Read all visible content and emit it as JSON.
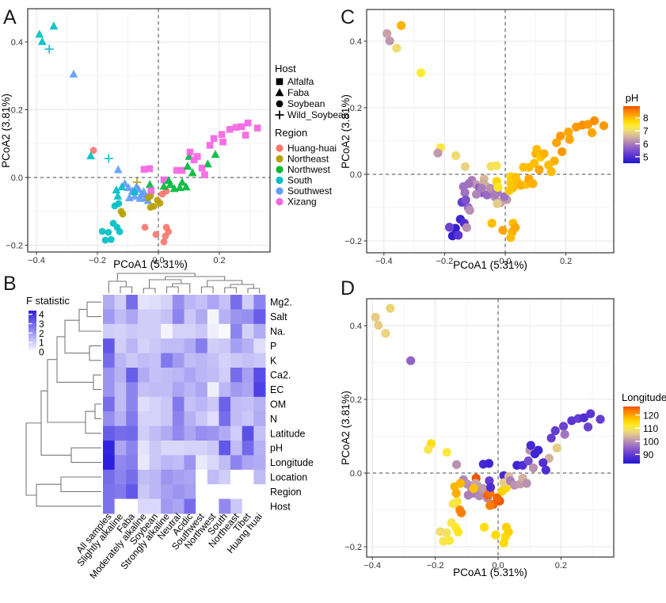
{
  "panels": {
    "A": {
      "label": "A"
    },
    "B": {
      "label": "B"
    },
    "C": {
      "label": "C"
    },
    "D": {
      "label": "D"
    }
  },
  "palette": {
    "regions": {
      "Huang-huai": "#F8766D",
      "Northeast": "#B79F00",
      "Northwest": "#00BA38",
      "South": "#00BFC4",
      "Southwest": "#619CFF",
      "Xizang": "#F564E3"
    },
    "gradient_stops": [
      [
        0.0,
        "#2016d2"
      ],
      [
        0.1,
        "#4b2ad2"
      ],
      [
        0.2,
        "#7347cf"
      ],
      [
        0.3,
        "#9a6cc4"
      ],
      [
        0.4,
        "#bd95b0"
      ],
      [
        0.5,
        "#dec293"
      ],
      [
        0.58,
        "#f2e06b"
      ],
      [
        0.66,
        "#fdea33"
      ],
      [
        0.74,
        "#ffd900"
      ],
      [
        0.84,
        "#ffa600"
      ],
      [
        0.93,
        "#fb7a00"
      ],
      [
        1.0,
        "#ef4e00"
      ]
    ],
    "heatmap_max": "#2d1fe0",
    "heatmap_min": "#ffffff",
    "dendrogram": "#7a7a7a"
  },
  "chart_data": [
    {
      "id": "A",
      "type": "scatter",
      "xlabel": "PCoA1 (5.31%)",
      "ylabel": "PCoA2 (3.81%)",
      "x_tick_values": [
        -0.4,
        -0.2,
        0.0,
        0.2
      ],
      "x_tick_labels": [
        "−0.4",
        "−0.2",
        "0.0",
        "0.2"
      ],
      "y_tick_values": [
        -0.2,
        0.0,
        0.2,
        0.4
      ],
      "y_tick_labels": [
        "−0.2",
        "0.0",
        "0.2",
        "0.4"
      ],
      "xlim": [
        -0.43,
        0.37
      ],
      "ylim": [
        -0.22,
        0.5
      ],
      "shape_legend": {
        "title": "Host",
        "items": [
          "Alfalfa",
          "Faba",
          "Soybean",
          "Wild_Soybean"
        ],
        "shapes": [
          "square",
          "triangle",
          "circle",
          "plus"
        ]
      },
      "color_legend": {
        "title": "Region",
        "items": [
          "Huang-huai",
          "Northeast",
          "Northwest",
          "South",
          "Southwest",
          "Xizang"
        ]
      },
      "hosts": [
        "Alfalfa",
        "Faba",
        "Soybean",
        "Wild_Soybean"
      ],
      "regions": [
        "Huang-huai",
        "Northeast",
        "Northwest",
        "South",
        "Southwest",
        "Xizang"
      ],
      "point_fields": [
        "x",
        "y",
        "host_index",
        "region_index",
        "pH",
        "longitude"
      ],
      "points": [
        [
          -0.39,
          0.423,
          1,
          3,
          6.4,
          106
        ],
        [
          -0.381,
          0.401,
          1,
          3,
          6.3,
          106
        ],
        [
          -0.343,
          0.447,
          1,
          3,
          8.1,
          107
        ],
        [
          -0.358,
          0.379,
          3,
          3,
          7.0,
          107
        ],
        [
          -0.278,
          0.305,
          1,
          4,
          7.4,
          95
        ],
        [
          -0.213,
          0.08,
          2,
          0,
          7.3,
          114
        ],
        [
          -0.222,
          0.064,
          1,
          3,
          6.3,
          110
        ],
        [
          -0.163,
          0.056,
          3,
          3,
          7.0,
          111
        ],
        [
          -0.132,
          0.023,
          1,
          4,
          6.9,
          100
        ],
        [
          -0.047,
          0.024,
          0,
          5,
          7.1,
          87
        ],
        [
          -0.029,
          0.026,
          0,
          5,
          7.2,
          86
        ],
        [
          0.018,
          -0.007,
          0,
          5,
          7.8,
          87
        ],
        [
          0.06,
          0.021,
          0,
          5,
          8.0,
          86
        ],
        [
          0.078,
          0.021,
          0,
          5,
          8.0,
          88
        ],
        [
          -0.07,
          -0.014,
          3,
          1,
          6.6,
          126
        ],
        [
          -0.11,
          -0.018,
          1,
          4,
          6.0,
          99
        ],
        [
          -0.098,
          -0.03,
          1,
          4,
          6.3,
          100
        ],
        [
          -0.085,
          -0.04,
          1,
          4,
          5.6,
          99
        ],
        [
          -0.078,
          -0.055,
          1,
          4,
          5.5,
          98
        ],
        [
          -0.065,
          -0.035,
          1,
          4,
          6.4,
          101
        ],
        [
          -0.055,
          -0.05,
          1,
          4,
          6.9,
          100
        ],
        [
          -0.042,
          -0.06,
          1,
          4,
          7.0,
          103
        ],
        [
          -0.034,
          -0.068,
          1,
          4,
          6.2,
          99
        ],
        [
          -0.095,
          -0.06,
          1,
          4,
          6.1,
          98
        ],
        [
          -0.072,
          -0.028,
          1,
          4,
          6.5,
          102
        ],
        [
          -0.06,
          -0.062,
          1,
          4,
          5.8,
          99
        ],
        [
          -0.048,
          -0.042,
          1,
          4,
          6.2,
          101
        ],
        [
          -0.12,
          -0.028,
          1,
          3,
          5.9,
          118
        ],
        [
          -0.138,
          -0.037,
          1,
          3,
          5.9,
          118
        ],
        [
          -0.133,
          -0.055,
          1,
          3,
          5.9,
          119
        ],
        [
          -0.078,
          -0.042,
          1,
          3,
          6.0,
          117
        ],
        [
          -0.033,
          -0.06,
          2,
          1,
          6.0,
          125
        ],
        [
          -0.026,
          -0.054,
          2,
          1,
          6.0,
          124
        ],
        [
          -0.015,
          -0.085,
          2,
          1,
          6.4,
          125
        ],
        [
          -0.026,
          -0.088,
          2,
          1,
          6.8,
          123
        ],
        [
          0.005,
          -0.076,
          2,
          1,
          6.3,
          126
        ],
        [
          -0.003,
          -0.067,
          2,
          1,
          5.9,
          125
        ],
        [
          -0.122,
          -0.1,
          2,
          1,
          5.8,
          122
        ],
        [
          -0.117,
          -0.108,
          2,
          1,
          6.2,
          123
        ],
        [
          -0.143,
          -0.084,
          2,
          3,
          5.2,
          110
        ],
        [
          -0.13,
          -0.077,
          2,
          3,
          5.5,
          111
        ],
        [
          -0.148,
          -0.135,
          2,
          3,
          4.8,
          110
        ],
        [
          -0.135,
          -0.147,
          2,
          3,
          5.0,
          112
        ],
        [
          -0.164,
          -0.162,
          2,
          3,
          4.7,
          109
        ],
        [
          -0.184,
          -0.159,
          2,
          3,
          5.3,
          108
        ],
        [
          -0.174,
          -0.185,
          2,
          3,
          4.7,
          110
        ],
        [
          -0.155,
          -0.183,
          2,
          3,
          5.1,
          111
        ],
        [
          -0.127,
          -0.16,
          2,
          3,
          6.2,
          113
        ],
        [
          -0.044,
          -0.147,
          2,
          0,
          8.0,
          114
        ],
        [
          -0.008,
          -0.168,
          2,
          0,
          8.2,
          115
        ],
        [
          0.026,
          -0.147,
          2,
          0,
          8.0,
          116
        ],
        [
          0.023,
          -0.173,
          2,
          0,
          8.1,
          115
        ],
        [
          0.033,
          -0.16,
          2,
          0,
          8.2,
          116
        ],
        [
          0.018,
          -0.19,
          2,
          0,
          8.0,
          115
        ],
        [
          0.013,
          -0.049,
          2,
          0,
          7.9,
          116
        ],
        [
          0.026,
          -0.04,
          2,
          0,
          8.0,
          115
        ],
        [
          -0.028,
          -0.021,
          1,
          2,
          7.8,
          90
        ],
        [
          0.018,
          -0.026,
          1,
          2,
          7.9,
          106
        ],
        [
          0.034,
          -0.009,
          1,
          2,
          8.0,
          104
        ],
        [
          0.039,
          -0.021,
          1,
          2,
          8.0,
          98
        ],
        [
          0.052,
          -0.033,
          1,
          2,
          8.1,
          100
        ],
        [
          0.07,
          -0.03,
          1,
          2,
          8.0,
          101
        ],
        [
          0.078,
          -0.014,
          1,
          2,
          8.2,
          103
        ],
        [
          0.091,
          -0.028,
          1,
          2,
          8.1,
          100
        ],
        [
          0.096,
          0.033,
          1,
          2,
          8.0,
          92
        ],
        [
          0.112,
          0.014,
          1,
          2,
          8.2,
          100
        ],
        [
          0.162,
          0.04,
          1,
          2,
          8.1,
          103
        ],
        [
          0.187,
          0.068,
          1,
          2,
          8.3,
          106
        ],
        [
          0.101,
          0.062,
          1,
          2,
          8.1,
          100
        ],
        [
          0.104,
          0.075,
          0,
          5,
          8.0,
          87
        ],
        [
          0.117,
          0.052,
          0,
          5,
          7.9,
          86
        ],
        [
          0.143,
          0.028,
          0,
          5,
          8.0,
          88
        ],
        [
          0.128,
          0.062,
          0,
          5,
          8.1,
          86
        ],
        [
          0.169,
          0.095,
          0,
          5,
          8.2,
          90
        ],
        [
          0.182,
          0.115,
          0,
          5,
          8.3,
          90
        ],
        [
          0.208,
          0.127,
          0,
          5,
          8.2,
          91
        ],
        [
          0.234,
          0.142,
          0,
          5,
          8.3,
          89
        ],
        [
          0.255,
          0.148,
          0,
          5,
          8.4,
          90
        ],
        [
          0.273,
          0.15,
          0,
          5,
          8.3,
          88
        ],
        [
          0.294,
          0.161,
          0,
          5,
          8.4,
          89
        ],
        [
          0.325,
          0.146,
          0,
          5,
          8.3,
          90
        ],
        [
          0.286,
          0.125,
          0,
          5,
          8.2,
          91
        ],
        [
          0.212,
          0.105,
          0,
          5,
          8.2,
          97
        ],
        [
          0.152,
          0.008,
          0,
          5,
          8.0,
          88
        ],
        [
          -0.024,
          -0.039,
          0,
          5,
          7.5,
          88
        ]
      ]
    },
    {
      "id": "B",
      "type": "heatmap",
      "legend_title": "F statistic",
      "legend_ticks": [
        4,
        3,
        2,
        1,
        0
      ],
      "legend_domain": [
        0,
        4.4
      ],
      "rows": [
        "Mg2.",
        "Salt",
        "Na.",
        "P",
        "K",
        "Ca2.",
        "EC",
        "OM",
        "N",
        "Latitude",
        "pH",
        "Longitude",
        "Location",
        "Region",
        "Host"
      ],
      "cols": [
        "All samples",
        "Slightly alkaline",
        "Faba",
        "Moderately alkaline",
        "Soybean",
        "Strongly alkaline",
        "Neutral",
        "Acidic",
        "Southwest",
        "Northwest",
        "South",
        "Northeast",
        "Tibet",
        "Huang huai"
      ],
      "values": [
        [
          1.5,
          0.9,
          2.6,
          0.5,
          0.6,
          0.8,
          2.0,
          1.3,
          1.1,
          1.6,
          1.1,
          2.6,
          0.9,
          2.2
        ],
        [
          1.8,
          1.2,
          1.6,
          0.9,
          0.9,
          1.1,
          2.2,
          1.0,
          1.5,
          0.2,
          1.4,
          1.9,
          2.0,
          2.9
        ],
        [
          0.9,
          0.8,
          1.0,
          0.9,
          0.9,
          0.2,
          0.8,
          0.8,
          1.0,
          0.3,
          0.1,
          2.2,
          0.8,
          1.5
        ],
        [
          3.0,
          0.9,
          1.3,
          0.8,
          1.0,
          1.2,
          1.2,
          1.5,
          2.3,
          0.9,
          1.0,
          1.7,
          1.4,
          0.6
        ],
        [
          2.6,
          1.3,
          1.0,
          1.2,
          1.1,
          2.4,
          1.8,
          1.2,
          1.3,
          1.1,
          0.8,
          1.0,
          1.1,
          1.0
        ],
        [
          1.9,
          1.4,
          2.9,
          1.5,
          1.1,
          1.2,
          1.3,
          1.6,
          1.3,
          1.2,
          0.9,
          2.6,
          1.7,
          3.2
        ],
        [
          1.9,
          1.2,
          2.2,
          1.1,
          1.2,
          1.2,
          1.6,
          1.3,
          1.6,
          0.3,
          1.3,
          1.8,
          1.6,
          3.4
        ],
        [
          2.6,
          1.2,
          2.2,
          0.6,
          0.8,
          1.0,
          2.4,
          1.1,
          1.3,
          1.0,
          2.8,
          1.2,
          1.1,
          1.4
        ],
        [
          2.0,
          1.4,
          2.4,
          0.8,
          0.8,
          1.0,
          2.2,
          1.4,
          1.0,
          0.6,
          2.6,
          1.2,
          1.0,
          1.5
        ],
        [
          2.9,
          2.6,
          2.7,
          0.9,
          1.2,
          1.5,
          2.1,
          1.6,
          2.0,
          1.9,
          1.5,
          0.9,
          3.1,
          1.1
        ],
        [
          3.9,
          1.6,
          2.2,
          0.5,
          1.0,
          0.7,
          0.7,
          0.8,
          0.8,
          1.0,
          3.0,
          1.2,
          2.7,
          1.4
        ],
        [
          4.0,
          2.1,
          2.3,
          0.4,
          1.0,
          1.3,
          1.2,
          1.9,
          0.4,
          0.7,
          1.2,
          2.2,
          1.6,
          1.5
        ],
        [
          2.6,
          2.2,
          2.6,
          1.2,
          1.3,
          1.9,
          1.7,
          1.6,
          0.0,
          1.2,
          0.9,
          0.0,
          0.0,
          1.2
        ],
        [
          2.5,
          2.4,
          3.0,
          1.0,
          1.3,
          1.7,
          1.9,
          1.7,
          0.0,
          0.0,
          0.0,
          0.0,
          0.0,
          0.0
        ],
        [
          2.5,
          0.0,
          0.0,
          0.7,
          0.7,
          1.8,
          1.6,
          2.6,
          0.0,
          0.0,
          2.1,
          1.0,
          0.0,
          0.0
        ]
      ],
      "row_dendrogram": [
        [
          "L0",
          "L1",
          110
        ],
        [
          "M0",
          "L2",
          100
        ],
        [
          "L3",
          "L4",
          113
        ],
        [
          "M1",
          "M2",
          82
        ],
        [
          "L5",
          "L6",
          118
        ],
        [
          "M3",
          "M4",
          72
        ],
        [
          "L7",
          "L8",
          120
        ],
        [
          "M6",
          "L9",
          108
        ],
        [
          "M5",
          "M7",
          60
        ],
        [
          "L10",
          "L11",
          90
        ],
        [
          "M8",
          "M9",
          52
        ],
        [
          "L12",
          "L13",
          77
        ],
        [
          "M11",
          "L14",
          46
        ],
        [
          "M10",
          "M12",
          33
        ]
      ],
      "col_dendrogram": [
        [
          "L1",
          "L2",
          362
        ],
        [
          "L0",
          "M0",
          355
        ],
        [
          "L3",
          "L4",
          364
        ],
        [
          "L5",
          "L6",
          362
        ],
        [
          "M3",
          "L7",
          358
        ],
        [
          "M2",
          "M4",
          353
        ],
        [
          "L8",
          "L9",
          362
        ],
        [
          "L10",
          "L11",
          363
        ],
        [
          "L12",
          "L13",
          364
        ],
        [
          "M7",
          "M8",
          359
        ],
        [
          "M6",
          "M9",
          354
        ],
        [
          "M5",
          "M10",
          349
        ],
        [
          "M1",
          "M11",
          345
        ]
      ]
    },
    {
      "id": "C",
      "type": "scatter",
      "color_by": "pH",
      "xlabel": "PCoA1 (5.31%)",
      "ylabel": "PCoA2 (3.81%)",
      "x_tick_values": [
        -0.4,
        -0.2,
        0.0,
        0.2
      ],
      "x_tick_labels": [
        "−0.4",
        "−0.2",
        "0.0",
        "0.2"
      ],
      "y_tick_values": [
        -0.2,
        0.0,
        0.2,
        0.4
      ],
      "y_tick_labels": [
        "−0.2",
        "0.0",
        "0.2",
        "0.4"
      ],
      "legend": {
        "title": "pH",
        "ticks": [
          8,
          7,
          6,
          5
        ],
        "domain": [
          4.5,
          8.9
        ]
      },
      "points_ref": "A"
    },
    {
      "id": "D",
      "type": "scatter",
      "color_by": "longitude",
      "xlabel": "PCoA1 (5.31%)",
      "ylabel": "PCoA2 (3.81%)",
      "x_tick_values": [
        -0.4,
        -0.2,
        0.0,
        0.2
      ],
      "x_tick_labels": [
        "−0.4",
        "−0.2",
        "0.0",
        "0.2"
      ],
      "y_tick_values": [
        -0.2,
        0.0,
        0.2,
        0.4
      ],
      "y_tick_labels": [
        "−0.2",
        "0.0",
        "0.2",
        "0.4"
      ],
      "legend": {
        "title": "Longitude",
        "ticks": [
          120,
          110,
          100,
          90
        ],
        "domain": [
          83,
          126.5
        ]
      },
      "points_ref": "A"
    }
  ]
}
